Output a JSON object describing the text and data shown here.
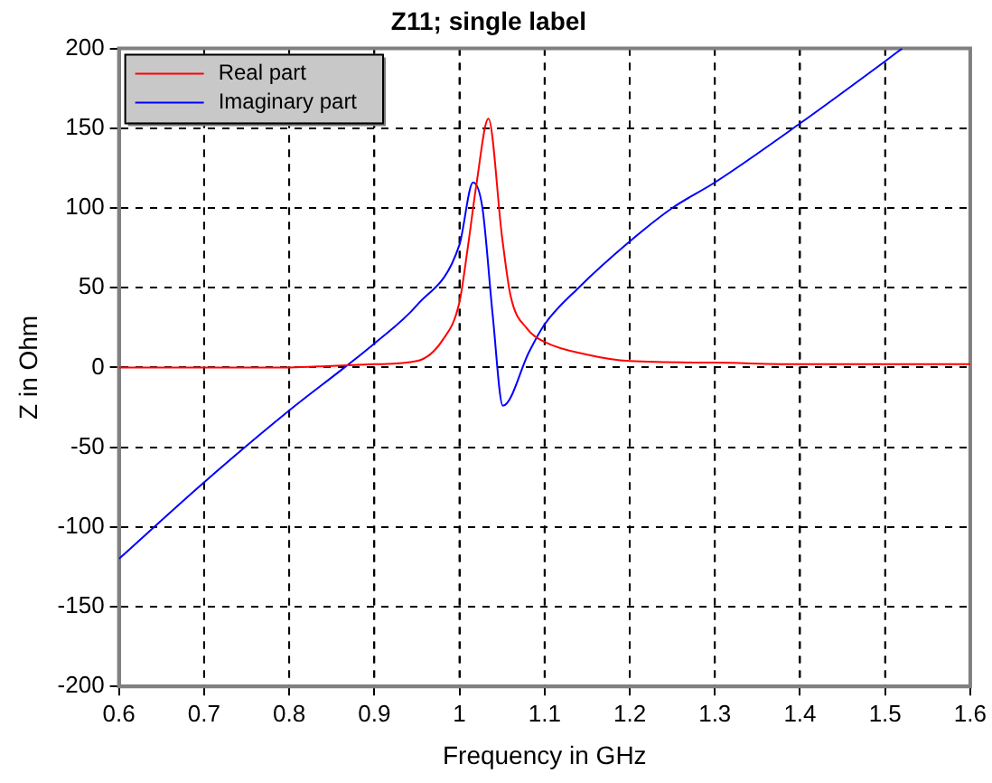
{
  "chart_data": {
    "type": "line",
    "title": "Z11; single label",
    "xlabel": "Frequency in GHz",
    "ylabel": "Z in Ohm",
    "xlim": [
      0.6,
      1.6
    ],
    "xticks": [
      0.6,
      0.7,
      0.8,
      0.9,
      1,
      1.1,
      1.2,
      1.3,
      1.4,
      1.5,
      1.6
    ],
    "ylim": [
      -200,
      200
    ],
    "yticks": [
      -200,
      -150,
      -100,
      -50,
      0,
      50,
      100,
      150,
      200
    ],
    "grid": true,
    "legend": "top left",
    "marker": "none",
    "line_style": "solid",
    "series": [
      {
        "name": "Real part",
        "color": "#ff0000",
        "x": [
          0.6,
          0.7,
          0.8,
          0.85,
          0.9,
          0.95,
          0.98,
          1,
          1.01,
          1.02,
          1.034,
          1.05,
          1.06,
          1.08,
          1.1,
          1.15,
          1.2,
          1.3,
          1.4,
          1.5,
          1.6
        ],
        "values": [
          0,
          0,
          0,
          1,
          2,
          4,
          17,
          41,
          76,
          115,
          156,
          82,
          45,
          24,
          16,
          8,
          4,
          3,
          2,
          2,
          2
        ]
      },
      {
        "name": "Imaginary part",
        "color": "#0000ff",
        "x": [
          0.6,
          0.7,
          0.8,
          0.865,
          0.9,
          0.95,
          1,
          1.016,
          1.027,
          1.039,
          1.051,
          1.082,
          1.1,
          1.14,
          1.2,
          1.25,
          1.3,
          1.4,
          1.5,
          1.52
        ],
        "values": [
          -120,
          -72,
          -27,
          0,
          15,
          39,
          77,
          116,
          100,
          33,
          -24,
          10,
          27,
          50,
          79,
          100,
          116,
          153,
          192,
          200
        ]
      }
    ]
  }
}
